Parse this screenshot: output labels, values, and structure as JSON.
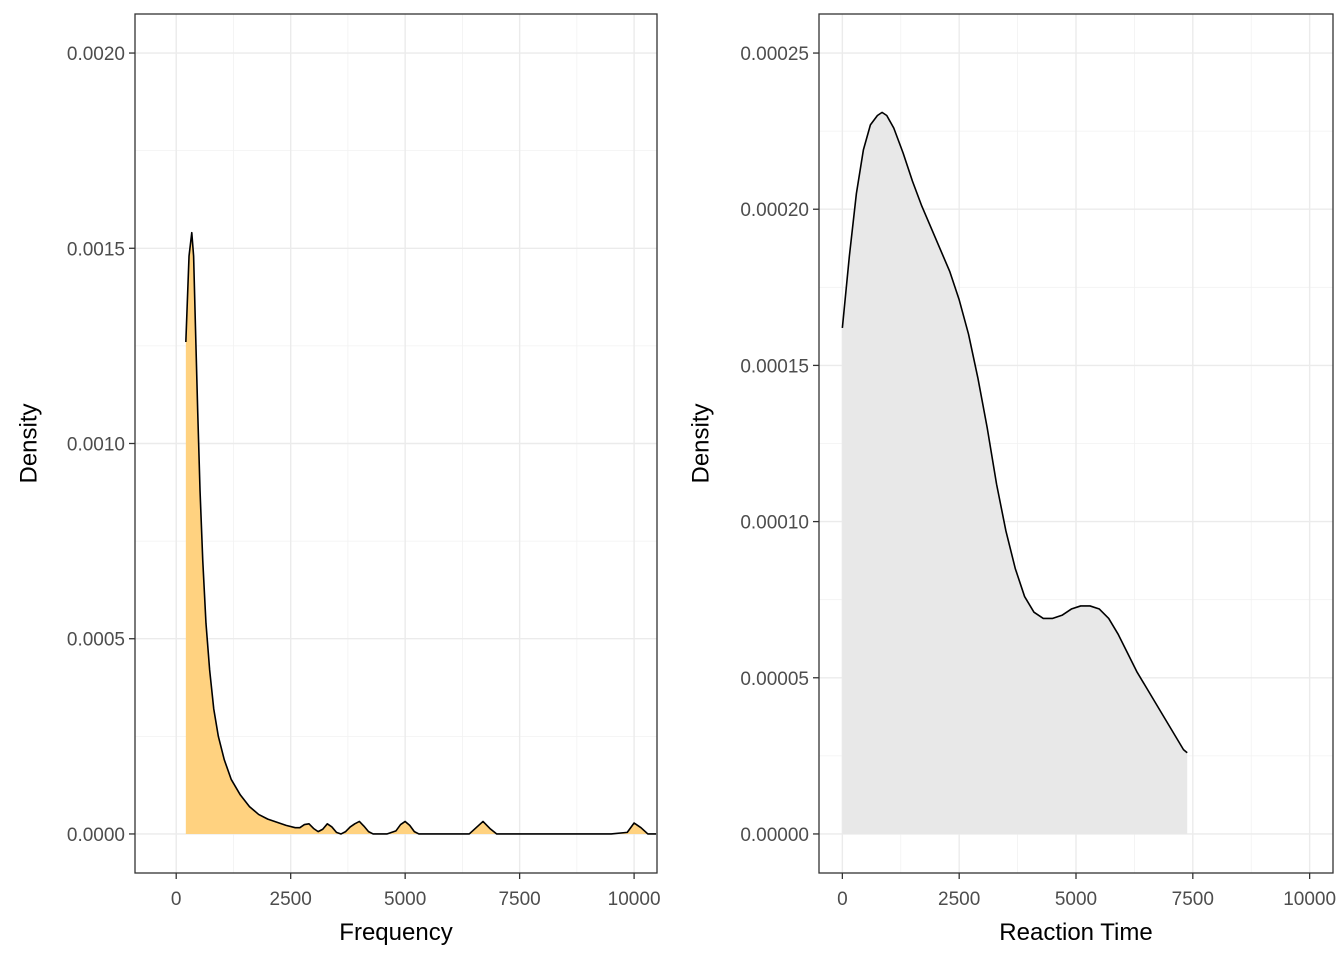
{
  "colors": {
    "left_fill": "#FFD280",
    "right_fill": "#E8E8E8",
    "line": "#000000"
  },
  "chart_data": [
    {
      "type": "area",
      "subtype": "density",
      "title": "",
      "xlabel": "Frequency",
      "ylabel": "Density",
      "xlim": [
        -900,
        10500
      ],
      "ylim": [
        -0.0001,
        0.0021
      ],
      "xticks": [
        0,
        2500,
        5000,
        7500,
        10000
      ],
      "xtick_labels": [
        "0",
        "2500",
        "5000",
        "7500",
        "10000"
      ],
      "yticks": [
        0,
        0.0005,
        0.001,
        0.0015,
        0.002
      ],
      "ytick_labels": [
        "0.0000",
        "0.0005",
        "0.0010",
        "0.0015",
        "0.0020"
      ],
      "grid": true,
      "x": [
        210,
        280,
        340,
        380,
        420,
        470,
        520,
        580,
        650,
        730,
        820,
        920,
        1050,
        1200,
        1400,
        1600,
        1800,
        2000,
        2200,
        2400,
        2600,
        2700,
        2800,
        2900,
        3000,
        3100,
        3200,
        3300,
        3400,
        3500,
        3600,
        3700,
        3800,
        3900,
        4000,
        4100,
        4200,
        4300,
        4400,
        4600,
        4800,
        4900,
        5000,
        5100,
        5200,
        5300,
        5500,
        6000,
        6400,
        6550,
        6700,
        6850,
        7000,
        7500,
        8000,
        8500,
        9000,
        9500,
        9850,
        10000,
        10150,
        10300,
        10480
      ],
      "y": [
        0.00126,
        0.00148,
        0.00154,
        0.00148,
        0.0013,
        0.00108,
        0.00088,
        0.0007,
        0.00054,
        0.00042,
        0.00032,
        0.00025,
        0.00019,
        0.00014,
        0.0001,
        7e-05,
        5e-05,
        3.8e-05,
        3e-05,
        2.2e-05,
        1.6e-05,
        1.6e-05,
        2.4e-05,
        2.6e-05,
        1.4e-05,
        6e-06,
        1.2e-05,
        2.6e-05,
        1.8e-05,
        4e-06,
        0.0,
        6e-06,
        1.8e-05,
        2.6e-05,
        3.2e-05,
        2e-05,
        6e-06,
        0.0,
        0.0,
        0.0,
        8e-06,
        2.4e-05,
        3.2e-05,
        2.2e-05,
        6e-06,
        0.0,
        0.0,
        0.0,
        0.0,
        1.6e-05,
        3.2e-05,
        1.4e-05,
        0.0,
        0.0,
        0.0,
        0.0,
        0.0,
        0.0,
        4e-06,
        2.8e-05,
        1.6e-05,
        0.0,
        0.0
      ]
    },
    {
      "type": "area",
      "subtype": "density",
      "title": "",
      "xlabel": "Reaction Time",
      "ylabel": "Density",
      "xlim": [
        -500,
        10500
      ],
      "ylim": [
        -1.25e-05,
        0.0002625
      ],
      "xticks": [
        0,
        2500,
        5000,
        7500,
        10000
      ],
      "xtick_labels": [
        "0",
        "2500",
        "5000",
        "7500",
        "10000"
      ],
      "yticks": [
        0,
        5e-05,
        0.0001,
        0.00015,
        0.0002,
        0.00025
      ],
      "ytick_labels": [
        "0.00000",
        "0.00005",
        "0.00010",
        "0.00015",
        "0.00020",
        "0.00025"
      ],
      "grid": true,
      "x": [
        0,
        150,
        300,
        450,
        600,
        750,
        850,
        950,
        1100,
        1300,
        1500,
        1700,
        1900,
        2100,
        2300,
        2500,
        2700,
        2900,
        3100,
        3300,
        3500,
        3700,
        3900,
        4100,
        4300,
        4500,
        4700,
        4900,
        5100,
        5300,
        5500,
        5700,
        5900,
        6100,
        6300,
        6500,
        6700,
        6900,
        7100,
        7300,
        7380
      ],
      "y": [
        0.000162,
        0.000185,
        0.000205,
        0.000219,
        0.000227,
        0.00023,
        0.000231,
        0.00023,
        0.000226,
        0.000218,
        0.000209,
        0.000201,
        0.000194,
        0.000187,
        0.00018,
        0.000171,
        0.00016,
        0.000146,
        0.00013,
        0.000112,
        9.7e-05,
        8.5e-05,
        7.6e-05,
        7.1e-05,
        6.9e-05,
        6.9e-05,
        7e-05,
        7.2e-05,
        7.3e-05,
        7.3e-05,
        7.2e-05,
        6.9e-05,
        6.4e-05,
        5.8e-05,
        5.2e-05,
        4.7e-05,
        4.2e-05,
        3.7e-05,
        3.2e-05,
        2.7e-05,
        2.6e-05
      ]
    }
  ]
}
